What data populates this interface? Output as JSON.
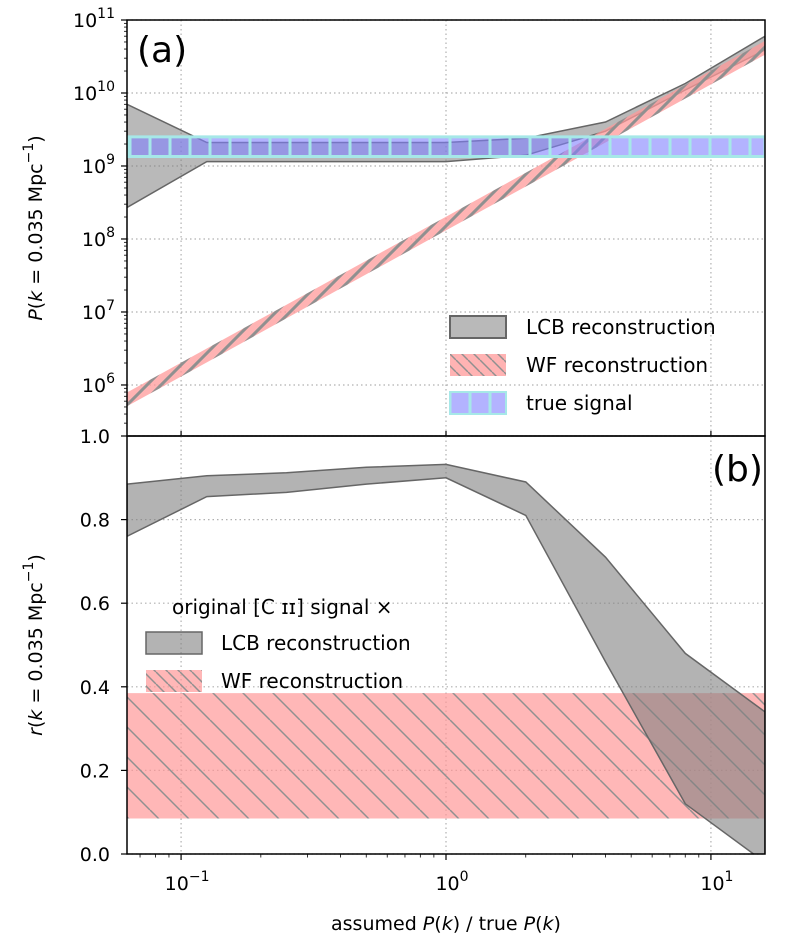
{
  "chart_data": [
    {
      "type": "area",
      "panel_label": "(a)",
      "xscale": "log",
      "yscale": "log",
      "xlim": [
        0.0625,
        16
      ],
      "ylim": [
        200000,
        100000000000
      ],
      "x": [
        0.0625,
        0.125,
        0.25,
        0.5,
        1,
        2,
        4,
        8,
        16
      ],
      "xticks": [
        0.1,
        1,
        10
      ],
      "xtick_labels": [
        {
          "base": "10",
          "exp": "−1"
        },
        {
          "base": "10",
          "exp": "0"
        },
        {
          "base": "10",
          "exp": "1"
        }
      ],
      "yticks": [
        1000000,
        10000000,
        100000000,
        1000000000,
        10000000000,
        100000000000
      ],
      "ytick_labels": [
        {
          "base": "10",
          "exp": "6"
        },
        {
          "base": "10",
          "exp": "7"
        },
        {
          "base": "10",
          "exp": "8"
        },
        {
          "base": "10",
          "exp": "9"
        },
        {
          "base": "10",
          "exp": "10"
        },
        {
          "base": "10",
          "exp": "11"
        }
      ],
      "ylabel": {
        "pre": "P(",
        "var": "k",
        "mid": " = 0.035 Mpc",
        "exp": "−1",
        "post": ")"
      },
      "legend_position": "lower-right",
      "series": [
        {
          "name": "LCB reconstruction",
          "color": "#808080",
          "lower": [
            270000000,
            1150000000,
            1150000000,
            1150000000,
            1150000000,
            1400000000,
            3000000000,
            11000000000,
            39000000000
          ],
          "upper": [
            7000000000,
            2100000000,
            2100000000,
            2100000000,
            2100000000,
            2400000000,
            4000000000,
            13500000000,
            60000000000
          ]
        },
        {
          "name": "WF reconstruction",
          "color": "#ff9999",
          "hatch": true,
          "lower": [
            510000,
            2040000,
            8200000,
            32800000,
            131000000,
            524000000,
            2100000000,
            8400000000,
            33500000000
          ],
          "upper": [
            790000,
            3160000,
            12600000,
            50600000,
            202000000,
            810000000,
            3240000000,
            12900000000,
            51700000000
          ]
        },
        {
          "name": "true signal",
          "color": "#8080ff",
          "edge": "#a6e8e8",
          "lower": [
            1350000000,
            1350000000,
            1350000000,
            1350000000,
            1350000000,
            1350000000,
            1350000000,
            1350000000,
            1350000000
          ],
          "upper": [
            2500000000,
            2500000000,
            2500000000,
            2500000000,
            2500000000,
            2500000000,
            2500000000,
            2500000000,
            2500000000
          ]
        }
      ]
    },
    {
      "type": "area",
      "panel_label": "(b)",
      "xscale": "log",
      "yscale": "linear",
      "xlim": [
        0.0625,
        16
      ],
      "ylim": [
        0,
        1
      ],
      "x": [
        0.0625,
        0.125,
        0.25,
        0.5,
        1,
        2,
        4,
        8,
        16
      ],
      "yticks": [
        0,
        0.2,
        0.4,
        0.6,
        0.8,
        1.0
      ],
      "ytick_labels": [
        "0.0",
        "0.2",
        "0.4",
        "0.6",
        "0.8",
        "1.0"
      ],
      "xlabel": {
        "a": "assumed ",
        "p1": "P",
        "k1": "(k)",
        "b": " / true ",
        "p2": "P",
        "k2": "(k)"
      },
      "ylabel": {
        "pre": "r(",
        "var": "k",
        "mid": " = 0.035 Mpc",
        "exp": "−1",
        "post": ")"
      },
      "legend_title": "original [C ɪɪ] signal ×",
      "legend_position": "center-left",
      "series": [
        {
          "name": "LCB reconstruction",
          "color": "#808080",
          "lower": [
            0.76,
            0.855,
            0.865,
            0.885,
            0.9,
            0.81,
            0.46,
            0.12,
            -0.02
          ],
          "upper": [
            0.885,
            0.905,
            0.912,
            0.925,
            0.932,
            0.89,
            0.71,
            0.48,
            0.34
          ]
        },
        {
          "name": "WF reconstruction",
          "color": "#ff9999",
          "hatch": true,
          "lower": [
            0.085,
            0.085,
            0.085,
            0.085,
            0.085,
            0.085,
            0.085,
            0.085,
            0.085
          ],
          "upper": [
            0.385,
            0.385,
            0.385,
            0.385,
            0.385,
            0.385,
            0.385,
            0.385,
            0.385
          ]
        }
      ]
    }
  ]
}
